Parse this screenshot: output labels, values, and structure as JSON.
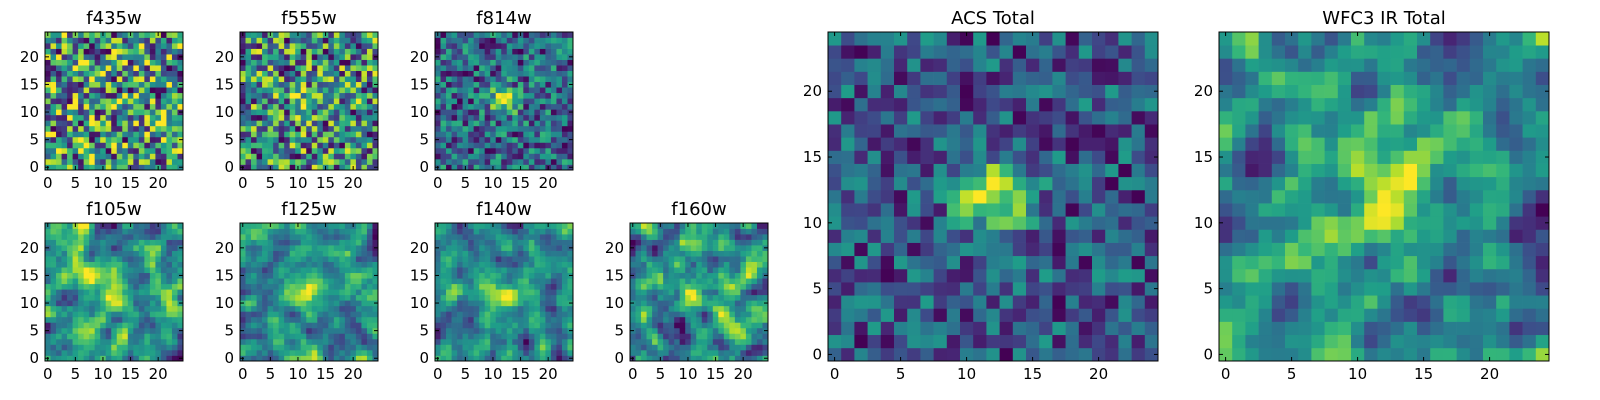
{
  "figure": {
    "description_colors": {
      "colormap": "viridis"
    }
  },
  "chart_data": [
    {
      "type": "heatmap",
      "title": "f435w",
      "grid_size": 25,
      "xlim": [
        0,
        24
      ],
      "ylim": [
        0,
        24
      ],
      "x_ticks": [
        0,
        5,
        10,
        15,
        20
      ],
      "y_ticks": [
        0,
        5,
        10,
        15,
        20
      ],
      "x_tick_labels": [
        "0",
        "5",
        "10",
        "15",
        "20"
      ],
      "y_tick_labels": [
        "0",
        "5",
        "10",
        "15",
        "20"
      ],
      "source": {
        "present": false,
        "center": [
          12,
          12
        ],
        "amplitude": 0.0,
        "width": 2.5
      },
      "noise_level": 0.55,
      "smooth": 0,
      "seed": 11,
      "colormap": "viridis"
    },
    {
      "type": "heatmap",
      "title": "f555w",
      "grid_size": 25,
      "xlim": [
        0,
        24
      ],
      "ylim": [
        0,
        24
      ],
      "x_ticks": [
        0,
        5,
        10,
        15,
        20
      ],
      "y_ticks": [
        0,
        5,
        10,
        15,
        20
      ],
      "x_tick_labels": [
        "0",
        "5",
        "10",
        "15",
        "20"
      ],
      "y_tick_labels": [
        "0",
        "5",
        "10",
        "15",
        "20"
      ],
      "source": {
        "present": true,
        "center": [
          12,
          12
        ],
        "amplitude": 0.35,
        "width": 1.8
      },
      "noise_level": 0.55,
      "smooth": 0,
      "seed": 23,
      "colormap": "viridis"
    },
    {
      "type": "heatmap",
      "title": "f814w",
      "grid_size": 25,
      "xlim": [
        0,
        24
      ],
      "ylim": [
        0,
        24
      ],
      "x_ticks": [
        0,
        5,
        10,
        15,
        20
      ],
      "y_ticks": [
        0,
        5,
        10,
        15,
        20
      ],
      "x_tick_labels": [
        "0",
        "5",
        "10",
        "15",
        "20"
      ],
      "y_tick_labels": [
        "0",
        "5",
        "10",
        "15",
        "20"
      ],
      "source": {
        "present": true,
        "center": [
          12,
          12
        ],
        "amplitude": 0.75,
        "width": 1.8
      },
      "noise_level": 0.45,
      "smooth": 0,
      "seed": 37,
      "colormap": "viridis"
    },
    {
      "type": "heatmap",
      "title": "f105w",
      "grid_size": 25,
      "xlim": [
        0,
        24
      ],
      "ylim": [
        0,
        24
      ],
      "x_ticks": [
        0,
        5,
        10,
        15,
        20
      ],
      "y_ticks": [
        0,
        5,
        10,
        15,
        20
      ],
      "x_tick_labels": [
        "0",
        "5",
        "10",
        "15",
        "20"
      ],
      "y_tick_labels": [
        "0",
        "5",
        "10",
        "15",
        "20"
      ],
      "source": {
        "present": true,
        "center": [
          12,
          12
        ],
        "amplitude": 0.4,
        "width": 2.2
      },
      "noise_level": 0.5,
      "smooth": 1,
      "seed": 41,
      "colormap": "viridis"
    },
    {
      "type": "heatmap",
      "title": "f125w",
      "grid_size": 25,
      "xlim": [
        0,
        24
      ],
      "ylim": [
        0,
        24
      ],
      "x_ticks": [
        0,
        5,
        10,
        15,
        20
      ],
      "y_ticks": [
        0,
        5,
        10,
        15,
        20
      ],
      "x_tick_labels": [
        "0",
        "5",
        "10",
        "15",
        "20"
      ],
      "y_tick_labels": [
        "0",
        "5",
        "10",
        "15",
        "20"
      ],
      "source": {
        "present": true,
        "center": [
          12,
          12
        ],
        "amplitude": 0.35,
        "width": 2.2
      },
      "noise_level": 0.5,
      "smooth": 1,
      "seed": 53,
      "colormap": "viridis"
    },
    {
      "type": "heatmap",
      "title": "f140w",
      "grid_size": 25,
      "xlim": [
        0,
        24
      ],
      "ylim": [
        0,
        24
      ],
      "x_ticks": [
        0,
        5,
        10,
        15,
        20
      ],
      "y_ticks": [
        0,
        5,
        10,
        15,
        20
      ],
      "x_tick_labels": [
        "0",
        "5",
        "10",
        "15",
        "20"
      ],
      "y_tick_labels": [
        "0",
        "5",
        "10",
        "15",
        "20"
      ],
      "source": {
        "present": true,
        "center": [
          12,
          12
        ],
        "amplitude": 0.35,
        "width": 2.2
      },
      "noise_level": 0.5,
      "smooth": 1,
      "seed": 67,
      "colormap": "viridis"
    },
    {
      "type": "heatmap",
      "title": "f160w",
      "grid_size": 25,
      "xlim": [
        0,
        24
      ],
      "ylim": [
        0,
        24
      ],
      "x_ticks": [
        0,
        5,
        10,
        15,
        20
      ],
      "y_ticks": [
        0,
        5,
        10,
        15,
        20
      ],
      "x_tick_labels": [
        "0",
        "5",
        "10",
        "15",
        "20"
      ],
      "y_tick_labels": [
        "0",
        "5",
        "10",
        "15",
        "20"
      ],
      "source": {
        "present": true,
        "center": [
          12,
          12
        ],
        "amplitude": 0.35,
        "width": 2.2
      },
      "noise_level": 0.5,
      "smooth": 1,
      "seed": 79,
      "colormap": "viridis"
    },
    {
      "type": "heatmap",
      "title": "ACS Total",
      "grid_size": 25,
      "xlim": [
        0,
        24
      ],
      "ylim": [
        0,
        24
      ],
      "x_ticks": [
        0,
        5,
        10,
        15,
        20
      ],
      "y_ticks": [
        0,
        5,
        10,
        15,
        20
      ],
      "x_tick_labels": [
        "0",
        "5",
        "10",
        "15",
        "20"
      ],
      "y_tick_labels": [
        "0",
        "5",
        "10",
        "15",
        "20"
      ],
      "source": {
        "present": true,
        "center": [
          12,
          12
        ],
        "amplitude": 0.8,
        "width": 1.9
      },
      "noise_level": 0.32,
      "smooth": 0,
      "seed": 97,
      "colormap": "viridis"
    },
    {
      "type": "heatmap",
      "title": "WFC3 IR Total",
      "grid_size": 25,
      "xlim": [
        0,
        24
      ],
      "ylim": [
        0,
        24
      ],
      "x_ticks": [
        0,
        5,
        10,
        15,
        20
      ],
      "y_ticks": [
        0,
        5,
        10,
        15,
        20
      ],
      "x_tick_labels": [
        "0",
        "5",
        "10",
        "15",
        "20"
      ],
      "y_tick_labels": [
        "0",
        "5",
        "10",
        "15",
        "20"
      ],
      "source": {
        "present": true,
        "center": [
          12,
          12
        ],
        "amplitude": 0.5,
        "width": 2.3
      },
      "noise_level": 0.38,
      "smooth": 1,
      "seed": 113,
      "colormap": "viridis"
    }
  ]
}
